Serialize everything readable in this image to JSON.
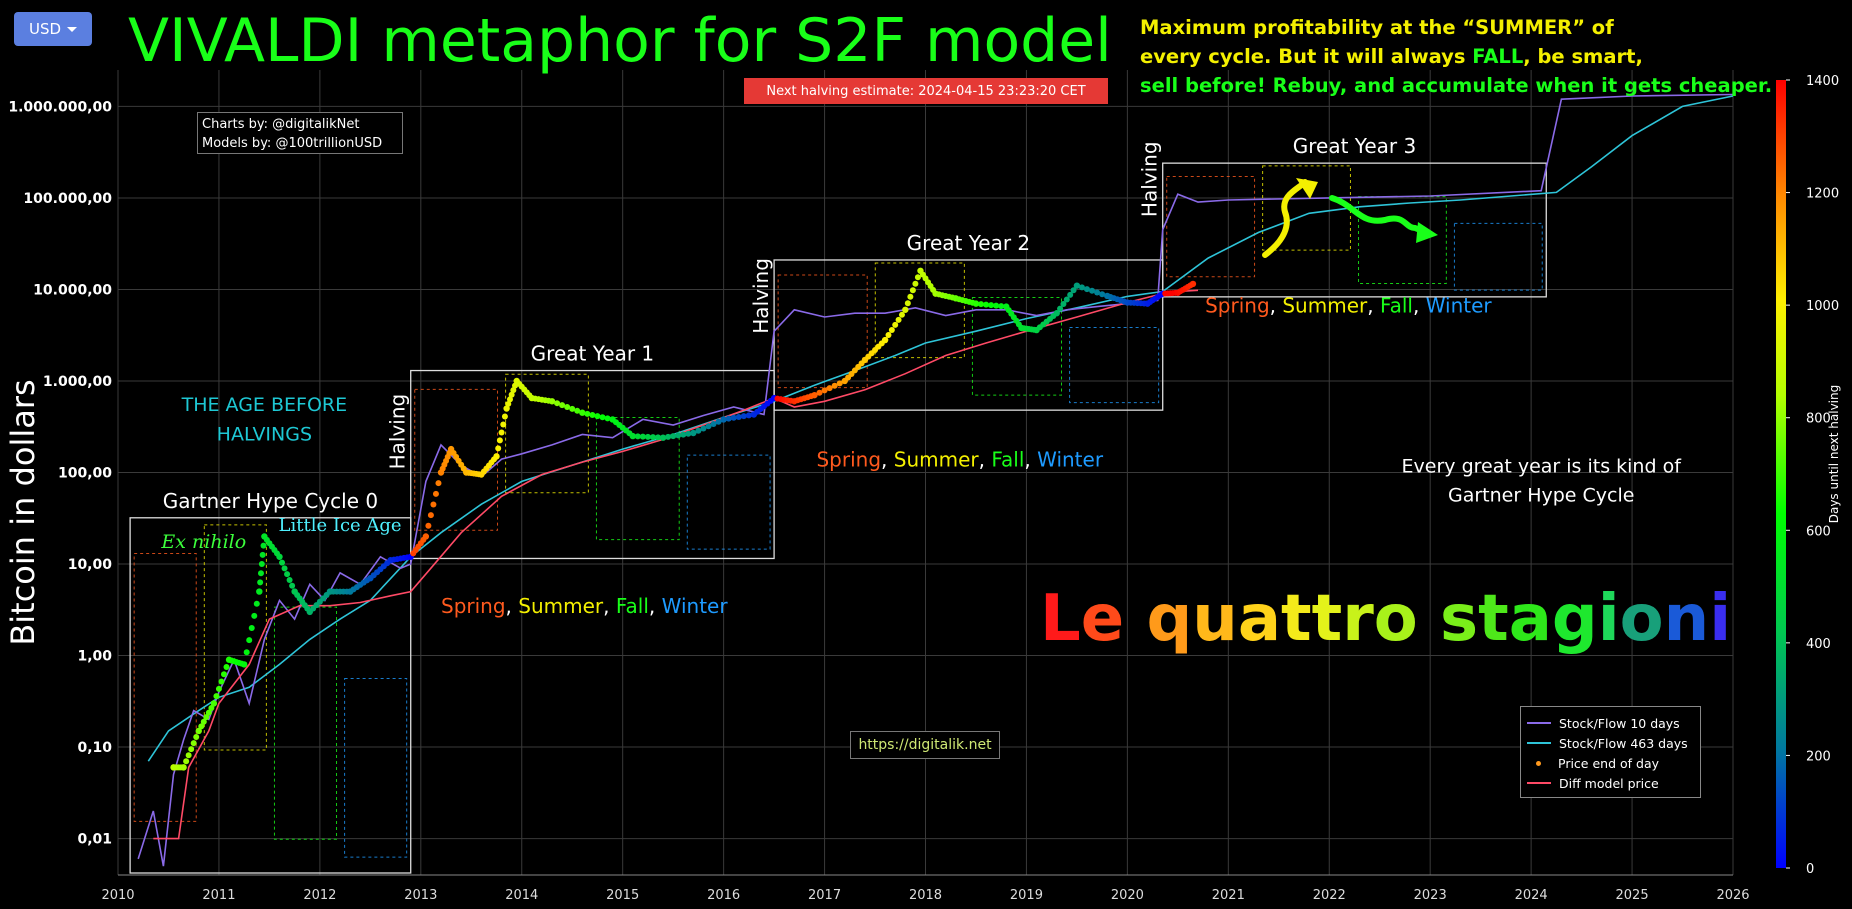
{
  "currency_button": {
    "label": "USD"
  },
  "title": "VIVALDI metaphor for S2F model",
  "halving_banner": "Next halving estimate: 2024-04-15 23:23:20 CET",
  "note_lines": [
    {
      "parts": [
        {
          "text": "Maximum profitability at the “SUMMER” of",
          "color": "#f4f000"
        }
      ]
    },
    {
      "parts": [
        {
          "text": "every cycle. But it will always ",
          "color": "#f4f000"
        },
        {
          "text": "FALL",
          "color": "#19ff19"
        },
        {
          "text": ", be smart,",
          "color": "#f4f000"
        }
      ]
    },
    {
      "parts": [
        {
          "text": "sell before! Rebuy, and accumulate when it gets cheaper.",
          "color": "#19ff19"
        }
      ]
    }
  ],
  "credits": {
    "line1": "Charts by: @digitalikNet",
    "line2": "Models by: @100trillionUSD"
  },
  "website": "https://digitalik.net",
  "legend": [
    {
      "label": "Stock/Flow 10 days",
      "color": "#8a6ae8",
      "marker": "line"
    },
    {
      "label": "Stock/Flow 463 days",
      "color": "#2ec4d8",
      "marker": "line"
    },
    {
      "label": "Price end of day",
      "color": "#ff9a1e",
      "marker": "dot"
    },
    {
      "label": "Diff model price",
      "color": "#ff4a66",
      "marker": "line"
    }
  ],
  "colorbar": {
    "label": "Days until next halving",
    "ticks": [
      0,
      200,
      400,
      600,
      800,
      1000,
      1200,
      1400
    ]
  },
  "great_years": [
    {
      "label": "Gartner Hype Cycle 0",
      "x0": 2010.12,
      "x1": 2012.9,
      "y0": 0.004,
      "y1": 32
    },
    {
      "label": "Great Year 1",
      "x0": 2012.9,
      "x1": 2016.5,
      "y0": 11.5,
      "y1": 1300
    },
    {
      "label": "Great Year 2",
      "x0": 2016.5,
      "x1": 2020.35,
      "y0": 480,
      "y1": 21000
    },
    {
      "label": "Great Year 3",
      "x0": 2020.35,
      "x1": 2024.15,
      "y0": 8300,
      "y1": 240000
    }
  ],
  "halving_labels": [
    {
      "text": "Halving",
      "x": 2012.9,
      "y": 280
    },
    {
      "text": "Halving",
      "x": 2016.5,
      "y": 8500
    },
    {
      "text": "Halving",
      "x": 2020.35,
      "y": 160000
    }
  ],
  "season_labels": [
    {
      "x": 2013.2,
      "y": 2.9
    },
    {
      "x": 2016.92,
      "y": 116
    },
    {
      "x": 2020.77,
      "y": 5600
    }
  ],
  "season_words": [
    {
      "text": "Spring",
      "color": "#ff5a1e"
    },
    {
      "text": ", ",
      "color": "#ffffff"
    },
    {
      "text": "Summer",
      "color": "#f4f000"
    },
    {
      "text": ", ",
      "color": "#ffffff"
    },
    {
      "text": "Fall",
      "color": "#19ff19"
    },
    {
      "text": ", ",
      "color": "#ffffff"
    },
    {
      "text": "Winter",
      "color": "#1e9bff"
    }
  ],
  "annotations": [
    {
      "text": "THE AGE BEFORE",
      "color": "#1ec8d4",
      "x": 2011.45,
      "y": 470,
      "size": 19,
      "font": "sans"
    },
    {
      "text": "HALVINGS",
      "color": "#1ec8d4",
      "x": 2011.45,
      "y": 225,
      "size": 19,
      "font": "sans"
    },
    {
      "text": "Ex nihilo",
      "color": "#3cff3c",
      "x": 2010.85,
      "y": 15,
      "size": 19,
      "font": "serif-italic"
    },
    {
      "text": "Little Ice Age",
      "color": "#4ff0ff",
      "x": 2012.2,
      "y": 23,
      "size": 18,
      "font": "serif"
    },
    {
      "text": "Every great year is its kind of",
      "color": "#ffffff",
      "x": 2024.1,
      "y": 100,
      "size": 19,
      "font": "sans"
    },
    {
      "text": "Gartner Hype Cycle",
      "color": "#ffffff",
      "x": 2024.1,
      "y": 48,
      "size": 19,
      "font": "sans"
    }
  ],
  "big_phrase": {
    "letters": [
      {
        "ch": "L",
        "color": "#ff1a1a"
      },
      {
        "ch": "e",
        "color": "#ff4a1a"
      },
      {
        "ch": " ",
        "color": "#ffffff"
      },
      {
        "ch": "q",
        "color": "#ff9a1a"
      },
      {
        "ch": "u",
        "color": "#ffb81a"
      },
      {
        "ch": "a",
        "color": "#ffd21a"
      },
      {
        "ch": "t",
        "color": "#f4ea1a"
      },
      {
        "ch": "t",
        "color": "#e4f21a"
      },
      {
        "ch": "r",
        "color": "#c8f21a"
      },
      {
        "ch": "o",
        "color": "#a8f21a"
      },
      {
        "ch": " ",
        "color": "#ffffff"
      },
      {
        "ch": "s",
        "color": "#7aee1a"
      },
      {
        "ch": "t",
        "color": "#4ee81a"
      },
      {
        "ch": "a",
        "color": "#2ee81a"
      },
      {
        "ch": "g",
        "color": "#1ee82e"
      },
      {
        "ch": "i",
        "color": "#1ed85a"
      },
      {
        "ch": "o",
        "color": "#18a07a"
      },
      {
        "ch": "n",
        "color": "#1a5ad8"
      },
      {
        "ch": "i",
        "color": "#3a2ef0"
      }
    ]
  },
  "chart_data": {
    "type": "line",
    "title": "VIVALDI metaphor for S2F model",
    "ylabel": "Bitcoin in dollars",
    "xlabel": "",
    "xlim": [
      2010,
      2026
    ],
    "ylim": [
      0.004,
      2500000
    ],
    "y_scale": "log",
    "grid": true,
    "legend_position": "bottom-right",
    "x_ticks": [
      "2010",
      "2011",
      "2012",
      "2013",
      "2014",
      "2015",
      "2016",
      "2017",
      "2018",
      "2019",
      "2020",
      "2021",
      "2022",
      "2023",
      "2024",
      "2025",
      "2026"
    ],
    "y_ticks": [
      {
        "value": 0.01,
        "label": "0,01"
      },
      {
        "value": 0.1,
        "label": "0,10"
      },
      {
        "value": 1,
        "label": "1,00"
      },
      {
        "value": 10,
        "label": "10,00"
      },
      {
        "value": 100,
        "label": "100,00"
      },
      {
        "value": 1000,
        "label": "1.000,00"
      },
      {
        "value": 10000,
        "label": "10.000,00"
      },
      {
        "value": 100000,
        "label": "100.000,00"
      },
      {
        "value": 1000000,
        "label": "1.000.000,00"
      }
    ],
    "halvings": [
      2012.9,
      2016.5,
      2020.35,
      2024.3
    ],
    "series": [
      {
        "name": "Stock/Flow 463 days",
        "color": "#2ec4d8",
        "x": [
          2010.3,
          2010.5,
          2010.8,
          2011,
          2011.3,
          2011.6,
          2011.9,
          2012.2,
          2012.5,
          2012.9,
          2013.2,
          2013.6,
          2014,
          2014.5,
          2015,
          2015.5,
          2016,
          2016.5,
          2016.9,
          2017.3,
          2017.7,
          2018,
          2018.5,
          2019,
          2019.5,
          2020,
          2020.35,
          2020.8,
          2021.3,
          2021.8,
          2022.3,
          2022.8,
          2023.3,
          2023.8,
          2024.25,
          2024.6,
          2025,
          2025.5,
          2026
        ],
        "y": [
          0.07,
          0.15,
          0.25,
          0.35,
          0.45,
          0.8,
          1.5,
          2.5,
          4,
          12,
          22,
          45,
          80,
          120,
          180,
          260,
          400,
          600,
          900,
          1300,
          1900,
          2600,
          3500,
          4800,
          6300,
          8400,
          9500,
          22000,
          42000,
          68000,
          80000,
          88000,
          95000,
          105000,
          115000,
          220000,
          480000,
          1000000,
          1300000
        ]
      },
      {
        "name": "Stock/Flow 10 days",
        "color": "#8a6ae8",
        "x": [
          2010.2,
          2010.35,
          2010.45,
          2010.55,
          2010.65,
          2010.75,
          2010.9,
          2011,
          2011.15,
          2011.3,
          2011.45,
          2011.6,
          2011.75,
          2011.9,
          2012.05,
          2012.2,
          2012.4,
          2012.6,
          2012.8,
          2012.9,
          2013.05,
          2013.2,
          2013.4,
          2013.6,
          2013.8,
          2014,
          2014.3,
          2014.6,
          2014.9,
          2015.2,
          2015.5,
          2015.8,
          2016.1,
          2016.4,
          2016.5,
          2016.7,
          2017,
          2017.3,
          2017.6,
          2017.9,
          2018.2,
          2018.5,
          2018.8,
          2019.1,
          2019.4,
          2019.7,
          2020,
          2020.3,
          2020.35,
          2020.5,
          2020.7,
          2021,
          2022,
          2023,
          2024.1,
          2024.3,
          2025,
          2026
        ],
        "y": [
          0.006,
          0.02,
          0.005,
          0.05,
          0.12,
          0.25,
          0.2,
          0.4,
          0.9,
          0.3,
          1.5,
          4,
          2.5,
          6,
          4,
          8,
          6,
          12,
          9,
          10,
          80,
          200,
          120,
          90,
          140,
          160,
          200,
          260,
          240,
          380,
          330,
          420,
          520,
          430,
          3500,
          6000,
          5000,
          5500,
          5500,
          6300,
          5200,
          6000,
          6000,
          5200,
          6000,
          6500,
          7000,
          7600,
          45000,
          110000,
          90000,
          95000,
          100000,
          105000,
          120000,
          1200000,
          1300000,
          1350000
        ]
      },
      {
        "name": "Diff model price",
        "color": "#ff4a66",
        "x": [
          2010.35,
          2010.6,
          2010.7,
          2010.9,
          2011,
          2011.3,
          2011.5,
          2011.8,
          2012.1,
          2012.4,
          2012.7,
          2012.9,
          2013.1,
          2013.4,
          2013.8,
          2014.2,
          2014.6,
          2015,
          2015.4,
          2015.8,
          2016.2,
          2016.5,
          2016.7,
          2017,
          2017.4,
          2017.8,
          2018.2,
          2018.6,
          2019,
          2019.5,
          2020,
          2020.35,
          2020.5,
          2020.7
        ],
        "y": [
          0.01,
          0.01,
          0.06,
          0.15,
          0.3,
          0.8,
          2.5,
          3.5,
          3.5,
          3.8,
          4.5,
          5,
          9,
          22,
          55,
          95,
          130,
          170,
          230,
          330,
          480,
          650,
          520,
          600,
          800,
          1200,
          1900,
          2600,
          3500,
          5000,
          7200,
          9000,
          9500,
          9800
        ]
      },
      {
        "name": "Price end of day",
        "color": "#ff9a1e",
        "x": [
          2010.55,
          2010.65,
          2010.8,
          2010.95,
          2011.1,
          2011.25,
          2011.4,
          2011.45,
          2011.6,
          2011.75,
          2011.9,
          2012.1,
          2012.3,
          2012.5,
          2012.7,
          2012.9,
          2013.05,
          2013.2,
          2013.3,
          2013.45,
          2013.6,
          2013.75,
          2013.85,
          2013.95,
          2014.1,
          2014.3,
          2014.6,
          2014.9,
          2015.1,
          2015.4,
          2015.7,
          2016,
          2016.3,
          2016.5,
          2016.7,
          2016.9,
          2017.2,
          2017.4,
          2017.6,
          2017.8,
          2017.95,
          2018.1,
          2018.3,
          2018.5,
          2018.8,
          2018.95,
          2019.1,
          2019.3,
          2019.5,
          2019.8,
          2020,
          2020.2,
          2020.35,
          2020.5,
          2020.65
        ],
        "y": [
          0.06,
          0.06,
          0.15,
          0.3,
          0.9,
          0.8,
          5,
          20,
          12,
          5,
          3,
          5,
          5,
          7,
          11,
          12,
          20,
          100,
          180,
          100,
          95,
          150,
          500,
          1000,
          650,
          600,
          450,
          380,
          250,
          240,
          270,
          380,
          430,
          650,
          600,
          700,
          1000,
          1700,
          2800,
          6000,
          16000,
          9000,
          8000,
          7000,
          6500,
          3800,
          3600,
          5500,
          11000,
          8500,
          7200,
          7000,
          9000,
          9200,
          11500
        ]
      }
    ]
  }
}
